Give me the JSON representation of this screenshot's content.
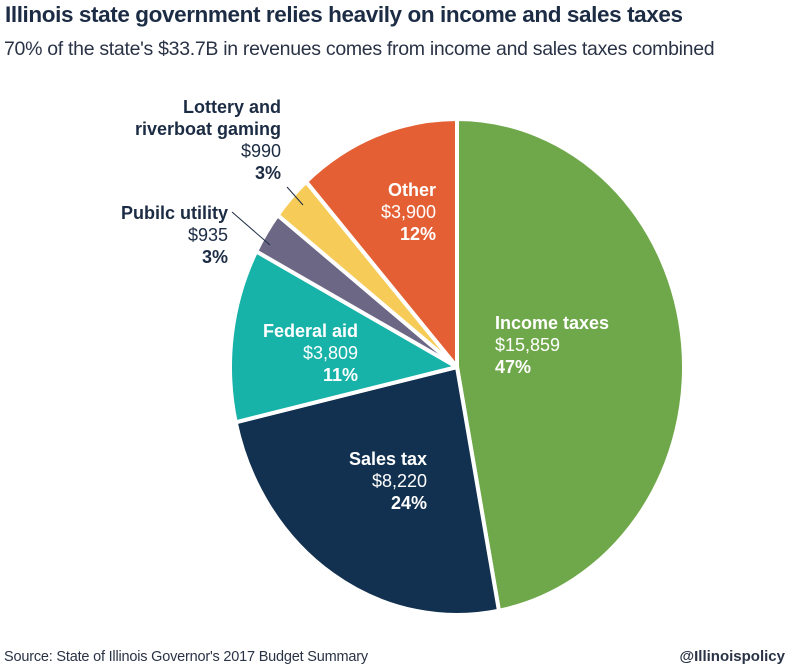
{
  "chart_data": {
    "type": "pie",
    "title": "Illinois state government relies heavily on income and sales taxes",
    "subtitle": "70% of the state's $33.7B in revenues comes from income and sales taxes combined",
    "units": "$ millions",
    "direction": "clockwise from top",
    "slices": [
      {
        "name": "Income taxes",
        "label_lines": [
          "Income taxes"
        ],
        "value": 15859,
        "value_label": "$15,859",
        "percent_label": "47%",
        "color": "#6fa84a",
        "label_position": "inside"
      },
      {
        "name": "Sales tax",
        "label_lines": [
          "Sales tax"
        ],
        "value": 8220,
        "value_label": "$8,220",
        "percent_label": "24%",
        "color": "#12304f",
        "label_position": "inside"
      },
      {
        "name": "Federal aid",
        "label_lines": [
          "Federal aid"
        ],
        "value": 3809,
        "value_label": "$3,809",
        "percent_label": "11%",
        "color": "#17b2a8",
        "label_position": "inside"
      },
      {
        "name": "Pubilc utility",
        "label_lines": [
          "Pubilc utility"
        ],
        "value": 935,
        "value_label": "$935",
        "percent_label": "3%",
        "color": "#6b6785",
        "label_position": "outside"
      },
      {
        "name": "Lottery and riverboat gaming",
        "label_lines": [
          "Lottery and",
          "riverboat gaming"
        ],
        "value": 990,
        "value_label": "$990",
        "percent_label": "3%",
        "color": "#f6cb58",
        "label_position": "outside"
      },
      {
        "name": "Other",
        "label_lines": [
          "Other"
        ],
        "value": 3900,
        "value_label": "$3,900",
        "percent_label": "12%",
        "color": "#e45f34",
        "label_position": "inside"
      }
    ]
  },
  "footer": {
    "source": "Source: State of Illinois Governor's 2017 Budget Summary",
    "handle": "@Illinoispolicy"
  }
}
